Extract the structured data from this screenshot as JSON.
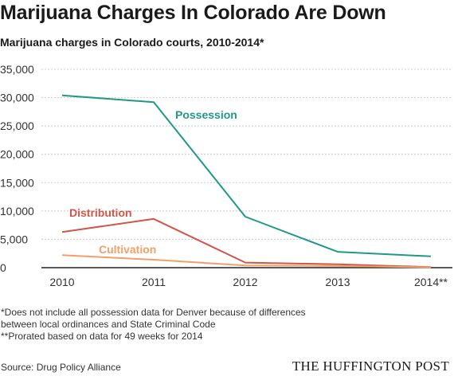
{
  "chart_data": {
    "type": "line",
    "title": "Marijuana Charges In Colorado Are Down",
    "subtitle": "Marijuana charges in Colorado courts, 2010-2014*",
    "categories": [
      "2010",
      "2011",
      "2012",
      "2013",
      "2014**"
    ],
    "series": [
      {
        "name": "Possession",
        "color": "#219985",
        "values": [
          30400,
          29200,
          9000,
          2800,
          2000
        ]
      },
      {
        "name": "Distribution",
        "color": "#d0564a",
        "values": [
          6300,
          8600,
          900,
          600,
          100
        ]
      },
      {
        "name": "Cultivation",
        "color": "#f2a069",
        "values": [
          2200,
          1400,
          400,
          300,
          50
        ]
      }
    ],
    "ylim": [
      0,
      35000
    ],
    "yticks": [
      0,
      5000,
      10000,
      15000,
      20000,
      25000,
      30000,
      35000
    ],
    "ytick_labels": [
      "0",
      "5,000",
      "10,000",
      "15,000",
      "20,000",
      "25,000",
      "30,000",
      "35,000"
    ],
    "grid": true,
    "xlabel": "",
    "ylabel": ""
  },
  "notes": [
    "*Does not include all possession data for Denver because of differences",
    "between local ordinances and State Criminal Code",
    "**Prorated based on data for 49 weeks for 2014"
  ],
  "source": "Source: Drug Policy Alliance",
  "brand": "THE HUFFINGTON POST"
}
